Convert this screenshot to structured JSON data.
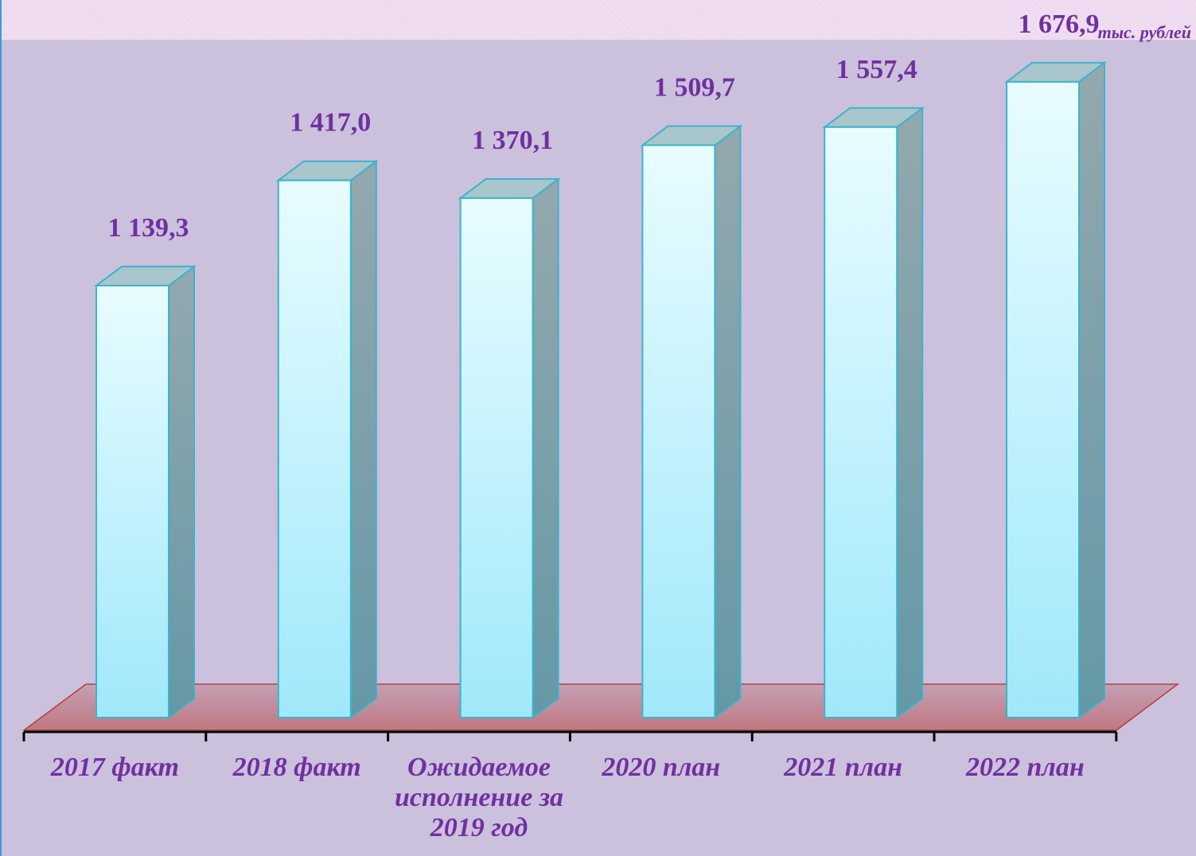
{
  "chart_data": {
    "type": "bar3d",
    "unit_label": "тыс. рублей",
    "categories": [
      "2017 факт",
      "2018 факт",
      "Ожидаемое исполнение за 2019 год",
      "2020 план",
      "2021 план",
      "2022 план"
    ],
    "values": [
      1139.3,
      1417.0,
      1370.1,
      1509.7,
      1557.4,
      1676.9
    ],
    "value_labels": [
      "1 139,3",
      "1 417,0",
      "1 370,1",
      "1 509,7",
      "1 557,4",
      "1 676,9"
    ],
    "ylim": [
      0,
      1750
    ],
    "color": "#a8ecfa"
  }
}
